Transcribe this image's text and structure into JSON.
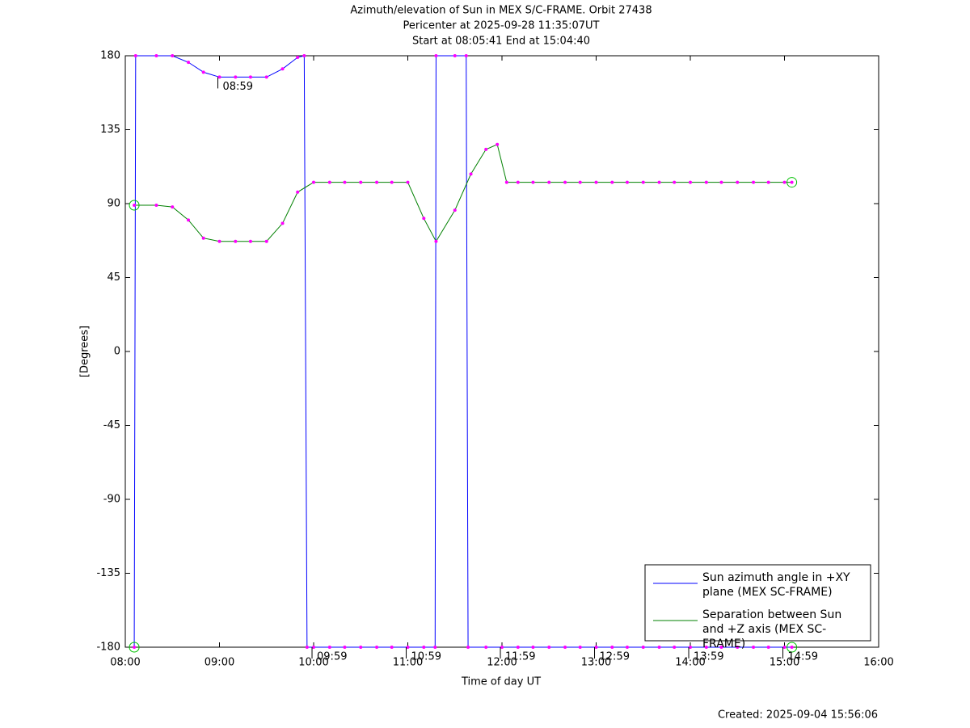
{
  "chart_data": {
    "type": "line",
    "title": "Azimuth/elevation of Sun in MEX S/C-FRAME.  Orbit 27438",
    "subtitle": [
      "Pericenter at 2025-09-28 11:35:07UT",
      "Start at 08:05:41 End at 15:04:40"
    ],
    "xlabel": "Time of day UT",
    "ylabel": "[Degrees]",
    "footer": "Created: 2025-09-04 15:56:06",
    "xlim": [
      8,
      16
    ],
    "xticks": [
      {
        "value": 8,
        "label": "08:00"
      },
      {
        "value": 9,
        "label": "09:00"
      },
      {
        "value": 10,
        "label": "10:00"
      },
      {
        "value": 11,
        "label": "11:00"
      },
      {
        "value": 12,
        "label": "12:00"
      },
      {
        "value": 13,
        "label": "13:00"
      },
      {
        "value": 14,
        "label": "14:00"
      },
      {
        "value": 15,
        "label": "15:00"
      },
      {
        "value": 16,
        "label": "16:00"
      }
    ],
    "ylim": [
      -180,
      180
    ],
    "yticks": [
      -180,
      -135,
      -90,
      -45,
      0,
      45,
      90,
      135,
      180
    ],
    "grid": false,
    "legend": "lower right",
    "marker_color": "#ff00ff",
    "series": [
      {
        "name": "Sun azimuth angle in +XY plane (MEX SC-FRAME)",
        "color": "#0000ff",
        "x": [
          8.095,
          8.11,
          8.33,
          8.5,
          8.67,
          8.83,
          9.0,
          9.17,
          9.33,
          9.5,
          9.67,
          9.83,
          9.9,
          9.93,
          10.0,
          10.17,
          10.33,
          10.5,
          10.67,
          10.83,
          11.0,
          11.17,
          11.29,
          11.3,
          11.5,
          11.62,
          11.64,
          11.83,
          12.0,
          12.17,
          12.33,
          12.5,
          12.67,
          12.83,
          13.0,
          13.17,
          13.33,
          13.5,
          13.67,
          13.83,
          14.0,
          14.17,
          14.33,
          14.5,
          14.67,
          14.83,
          15.0,
          15.078
        ],
        "values": [
          -180,
          180,
          180,
          180,
          176,
          170,
          167,
          167,
          167,
          167,
          172,
          179,
          180,
          -180,
          -180,
          -180,
          -180,
          -180,
          -180,
          -180,
          -180,
          -180,
          -180,
          180,
          180,
          180,
          -180,
          -180,
          -180,
          -180,
          -180,
          -180,
          -180,
          -180,
          -180,
          -180,
          -180,
          -180,
          -180,
          -180,
          -180,
          -180,
          -180,
          -180,
          -180,
          -180,
          -180,
          -180
        ]
      },
      {
        "name": "Separation between Sun and +Z axis (MEX SC-FRAME)",
        "color": "#008000",
        "x": [
          8.095,
          8.33,
          8.5,
          8.67,
          8.83,
          9.0,
          9.17,
          9.33,
          9.5,
          9.67,
          9.83,
          10.0,
          10.17,
          10.33,
          10.5,
          10.67,
          10.83,
          11.0,
          11.17,
          11.3,
          11.5,
          11.67,
          11.83,
          11.95,
          12.05,
          12.17,
          12.33,
          12.5,
          12.67,
          12.83,
          13.0,
          13.17,
          13.33,
          13.5,
          13.67,
          13.83,
          14.0,
          14.17,
          14.33,
          14.5,
          14.67,
          14.83,
          15.0,
          15.078
        ],
        "values": [
          89,
          89,
          88,
          80,
          69,
          67,
          67,
          67,
          67,
          78,
          97,
          103,
          103,
          103,
          103,
          103,
          103,
          103,
          81,
          67,
          86,
          108,
          123,
          126,
          103,
          103,
          103,
          103,
          103,
          103,
          103,
          103,
          103,
          103,
          103,
          103,
          103,
          103,
          103,
          103,
          103,
          103,
          103,
          103
        ]
      }
    ],
    "annotations": [
      {
        "text": "08:59",
        "x": 8.983,
        "y": 167
      },
      {
        "text": "09:59",
        "x": 9.983,
        "y": -180
      },
      {
        "text": "10:59",
        "x": 10.983,
        "y": -180
      },
      {
        "text": "11:59",
        "x": 11.983,
        "y": -180
      },
      {
        "text": "12:59",
        "x": 12.983,
        "y": -180
      },
      {
        "text": "13:59",
        "x": 13.983,
        "y": -180
      },
      {
        "text": "14:59",
        "x": 14.983,
        "y": -180
      }
    ]
  }
}
